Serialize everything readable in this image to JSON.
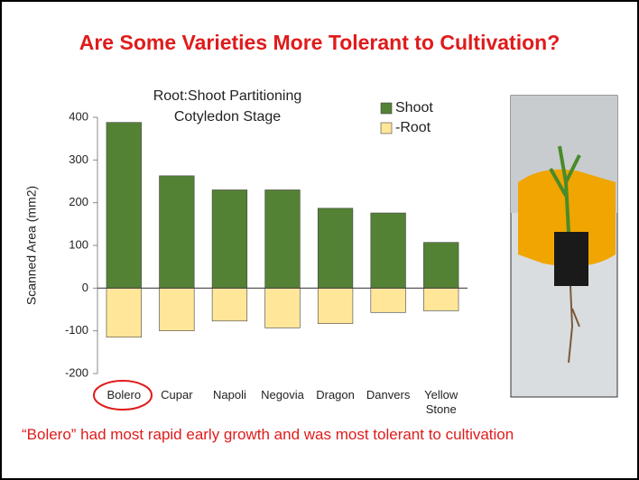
{
  "heading": "Are Some Varieties More Tolerant to Cultivation?",
  "chart_data": {
    "type": "bar",
    "title": "Root:Shoot Partitioning",
    "subtitle": "Cotyledon Stage",
    "y_label": "Scanned Area (mm2)",
    "categories": [
      "Bolero",
      "Cupar",
      "Napoli",
      "Negovia",
      "Dragon",
      "Danvers",
      "Yellow Stone"
    ],
    "series": [
      {
        "name": "Shoot",
        "color": "#548235",
        "values": [
          388,
          263,
          230,
          230,
          187,
          176,
          107
        ]
      },
      {
        "name": "-Root",
        "color": "#ffe699",
        "values": [
          -115,
          -100,
          -77,
          -93,
          -83,
          -57,
          -53
        ]
      }
    ],
    "ylim": [
      -200,
      400
    ],
    "yticks": [
      -200,
      -100,
      0,
      100,
      200,
      300,
      400
    ],
    "grid": false,
    "legend": "top-right"
  },
  "caption": "“Bolero” had most rapid early growth and was most tolerant to cultivation"
}
